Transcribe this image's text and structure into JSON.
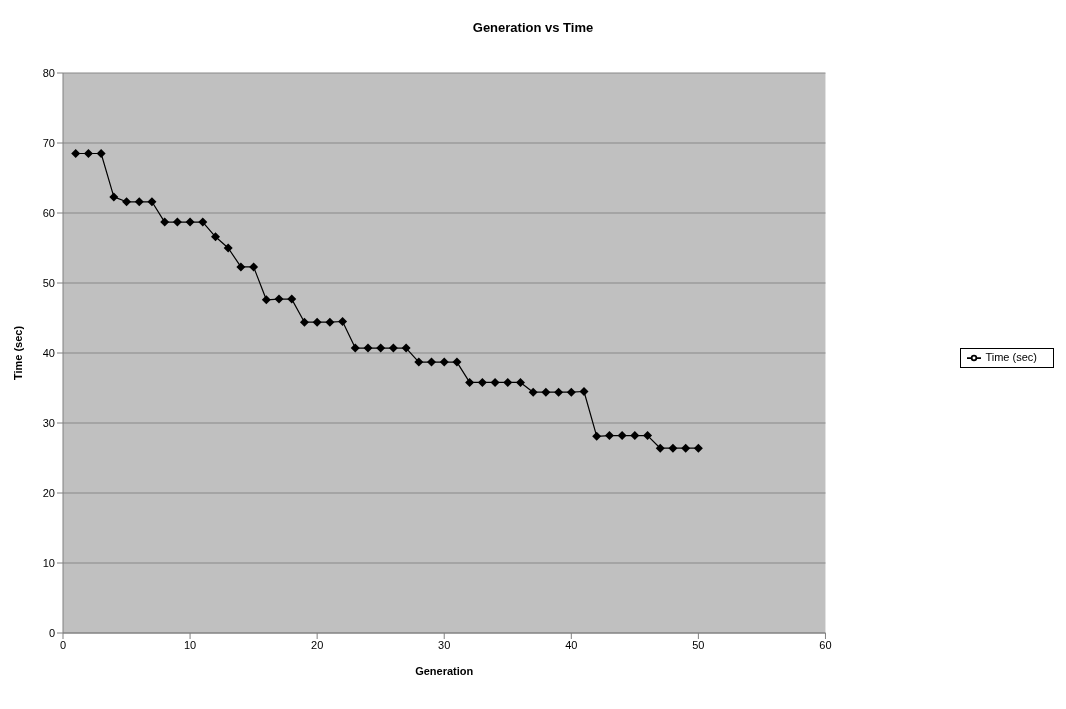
{
  "chart_data": {
    "type": "line",
    "title": "Generation vs Time",
    "xlabel": "Generation",
    "ylabel": "Time (sec)",
    "x": [
      1,
      2,
      3,
      4,
      5,
      6,
      7,
      8,
      9,
      10,
      11,
      12,
      13,
      14,
      15,
      16,
      17,
      18,
      19,
      20,
      21,
      22,
      23,
      24,
      25,
      26,
      27,
      28,
      29,
      30,
      31,
      32,
      33,
      34,
      35,
      36,
      37,
      38,
      39,
      40,
      41,
      42,
      43,
      44,
      45,
      46,
      47,
      48,
      49,
      50
    ],
    "series": [
      {
        "name": "Time (sec)",
        "color": "#000000",
        "values": [
          68.5,
          68.5,
          68.5,
          62.3,
          61.6,
          61.6,
          61.6,
          58.7,
          58.7,
          58.7,
          58.7,
          56.6,
          55,
          52.3,
          52.3,
          47.6,
          47.7,
          47.7,
          44.4,
          44.4,
          44.4,
          44.5,
          40.7,
          40.7,
          40.7,
          40.7,
          40.7,
          38.7,
          38.7,
          38.7,
          38.7,
          35.8,
          35.8,
          35.8,
          35.8,
          35.8,
          34.4,
          34.4,
          34.4,
          34.4,
          34.5,
          28.1,
          28.2,
          28.2,
          28.2,
          28.2,
          26.4,
          26.4,
          26.4,
          26.4
        ]
      }
    ],
    "xlim": [
      0,
      60
    ],
    "xticks": [
      0,
      10,
      20,
      30,
      40,
      50,
      60
    ],
    "ylim": [
      0,
      80
    ],
    "yticks": [
      0,
      10,
      20,
      30,
      40,
      50,
      60,
      70,
      80
    ],
    "grid": "y",
    "legend": "right",
    "marker": "diamond",
    "line_style": "solid"
  }
}
